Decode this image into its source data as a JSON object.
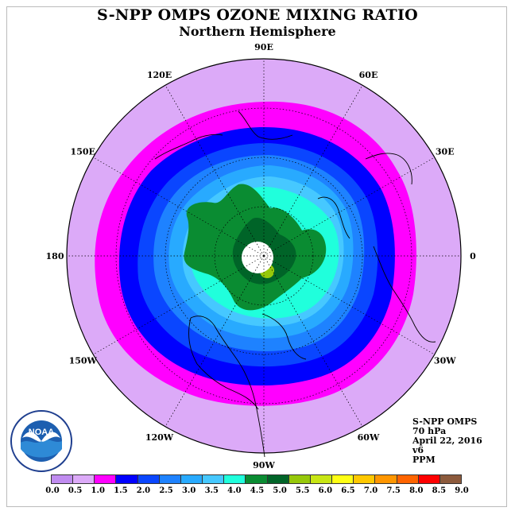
{
  "title": "S-NPP OMPS OZONE MIXING RATIO",
  "subtitle": "Northern Hemisphere",
  "longitude_labels": [
    "90E",
    "60E",
    "30E",
    "0",
    "30W",
    "60W",
    "90W",
    "120W",
    "150W",
    "180",
    "150E",
    "120E"
  ],
  "info": {
    "instrument": "S-NPP OMPS",
    "pressure": "70 hPa",
    "date": "April 22, 2016",
    "version": "v6",
    "units": "PPM"
  },
  "colorbar": {
    "ticks": [
      "0.0",
      "0.5",
      "1.0",
      "1.5",
      "2.0",
      "2.5",
      "3.0",
      "3.5",
      "4.0",
      "4.5",
      "5.0",
      "5.5",
      "6.0",
      "6.5",
      "7.0",
      "7.5",
      "8.0",
      "8.5",
      "9.0"
    ],
    "colors": [
      "#c08cf0",
      "#dcaaf8",
      "#ff00ff",
      "#0000ff",
      "#0a46ff",
      "#1e82ff",
      "#28aaff",
      "#46c8ff",
      "#20ffdc",
      "#0a8c32",
      "#006428",
      "#96c80a",
      "#c8e614",
      "#ffff14",
      "#ffc800",
      "#ff9600",
      "#ff6400",
      "#ff0000",
      "#8c5a3c"
    ]
  },
  "logo_text": "NOAA"
}
